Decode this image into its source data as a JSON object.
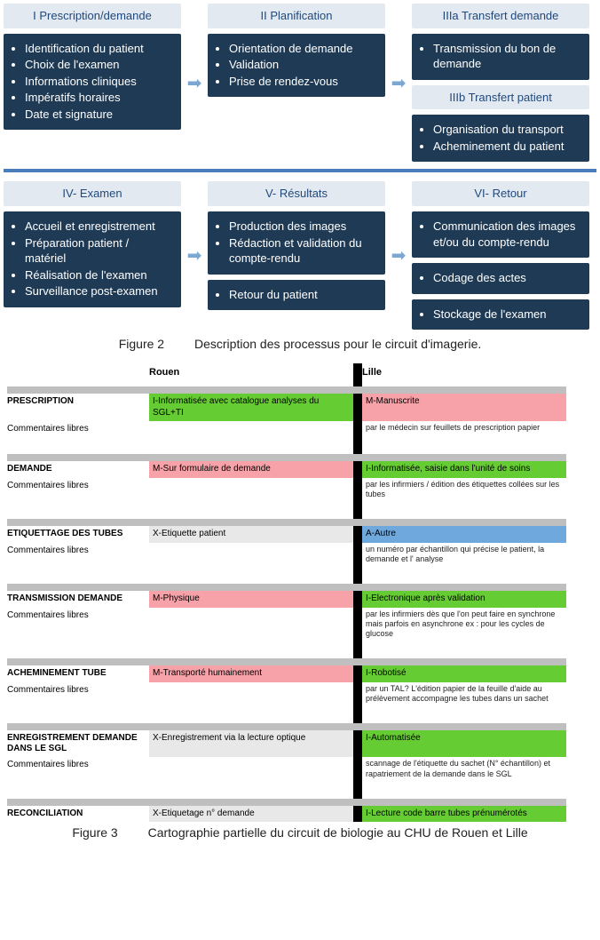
{
  "colors": {
    "header_light": "#e3e9f1",
    "header_text": "#1f497d",
    "body_dark": "#1f3a54",
    "body_text": "#ffffff",
    "arrow": "#7ba7d1",
    "divider": "#4a7ebb",
    "table_green": "#66cc33",
    "table_pink": "#f7a1a8",
    "table_blue": "#6fa8dc",
    "table_gray": "#d9d9d9",
    "table_lightgray": "#e8e8e8",
    "black": "#000000"
  },
  "flow": {
    "row1": {
      "col1": {
        "header": "I Prescription/demande",
        "items": [
          "Identification du patient",
          "Choix de l'examen",
          "Informations cliniques",
          "Impératifs horaires",
          "Date et signature"
        ]
      },
      "col2": {
        "header": "II Planification",
        "items": [
          "Orientation de demande",
          "Validation",
          "Prise de rendez-vous"
        ]
      },
      "col3": {
        "headerA": "IIIa Transfert demande",
        "itemsA": [
          "Transmission du bon de demande"
        ],
        "headerB": "IIIb Transfert patient",
        "itemsB": [
          "Organisation du transport",
          "Acheminement du patient"
        ]
      }
    },
    "row2": {
      "col1": {
        "header": "IV- Examen",
        "items": [
          "Accueil et enregistrement",
          "Préparation patient / matériel",
          "Réalisation de l'examen",
          "Surveillance post-examen"
        ]
      },
      "col2": {
        "header": "V- Résultats",
        "itemsA": [
          "Production des images",
          "Rédaction et validation du compte-rendu"
        ],
        "itemsB": [
          "Retour du patient"
        ]
      },
      "col3": {
        "header": "VI- Retour",
        "itemsA": [
          "Communication des images et/ou du compte-rendu"
        ],
        "itemsB": [
          "Codage des actes"
        ],
        "itemsC": [
          "Stockage de l'examen"
        ]
      }
    }
  },
  "fig2": {
    "label": "Figure 2",
    "caption": "Description des processus pour le circuit d'imagerie."
  },
  "fig3": {
    "label": "Figure 3",
    "caption": "Cartographie partielle du circuit de biologie au CHU de Rouen et Lille"
  },
  "table": {
    "cityA": "Rouen",
    "cityB": "Lille",
    "rows": [
      {
        "label": "PRESCRIPTION",
        "sublabel": "Commentaires libres",
        "a_value": "I-Informatisée avec catalogue analyses du SGL+TI",
        "a_color": "table_green",
        "a_note": "",
        "b_value": "M-Manuscrite",
        "b_color": "table_pink",
        "b_note": "par le médecin sur feuillets de prescription papier"
      },
      {
        "label": "DEMANDE",
        "sublabel": "Commentaires libres",
        "a_value": "M-Sur formulaire de demande",
        "a_color": "table_pink",
        "a_note": "",
        "b_value": "I-Informatisée, saisie dans l'unité de soins",
        "b_color": "table_green",
        "b_note": "par les infirmiers / édition des étiquettes collées sur les tubes"
      },
      {
        "label": "ETIQUETTAGE DES TUBES",
        "sublabel": "Commentaires libres",
        "a_value": "X-Etiquette patient",
        "a_color": "table_lightgray",
        "a_note": "",
        "b_value": "A-Autre",
        "b_color": "table_blue",
        "b_note": "un numéro par échantillon qui précise le patient, la demande et l' analyse"
      },
      {
        "label": "TRANSMISSION DEMANDE",
        "sublabel": "Commentaires libres",
        "a_value": "M-Physique",
        "a_color": "table_pink",
        "a_note": "",
        "b_value": "I-Electronique après validation",
        "b_color": "table_green",
        "b_note": "par les infirmiers dès que l'on peut faire en synchrone mais parfois en asynchrone ex : pour les cycles de glucose"
      },
      {
        "label": "ACHEMINEMENT TUBE",
        "sublabel": "Commentaires libres",
        "a_value": "M-Transporté humainement",
        "a_color": "table_pink",
        "a_note": "",
        "b_value": "I-Robotisé",
        "b_color": "table_green",
        "b_note": "par un TAL? L'édition papier de la feuille d'aide au prélèvement accompagne les tubes dans un sachet"
      },
      {
        "label": "ENREGISTREMENT DEMANDE DANS LE SGL",
        "sublabel": "Commentaires libres",
        "a_value": "X-Enregistrement via la lecture optique",
        "a_color": "table_lightgray",
        "a_note": "",
        "b_value": "I-Automatisée",
        "b_color": "table_green",
        "b_note": "scannage de l'étiquette du sachet (N° échantillon) et rapatriement de la demande dans le SGL"
      },
      {
        "label": "RECONCILIATION",
        "sublabel": "",
        "a_value": "X-Etiquetage n° demande",
        "a_color": "table_lightgray",
        "a_note": "",
        "b_value": "I-Lecture code barre tubes prénumérotés",
        "b_color": "table_green",
        "b_note": ""
      }
    ]
  }
}
